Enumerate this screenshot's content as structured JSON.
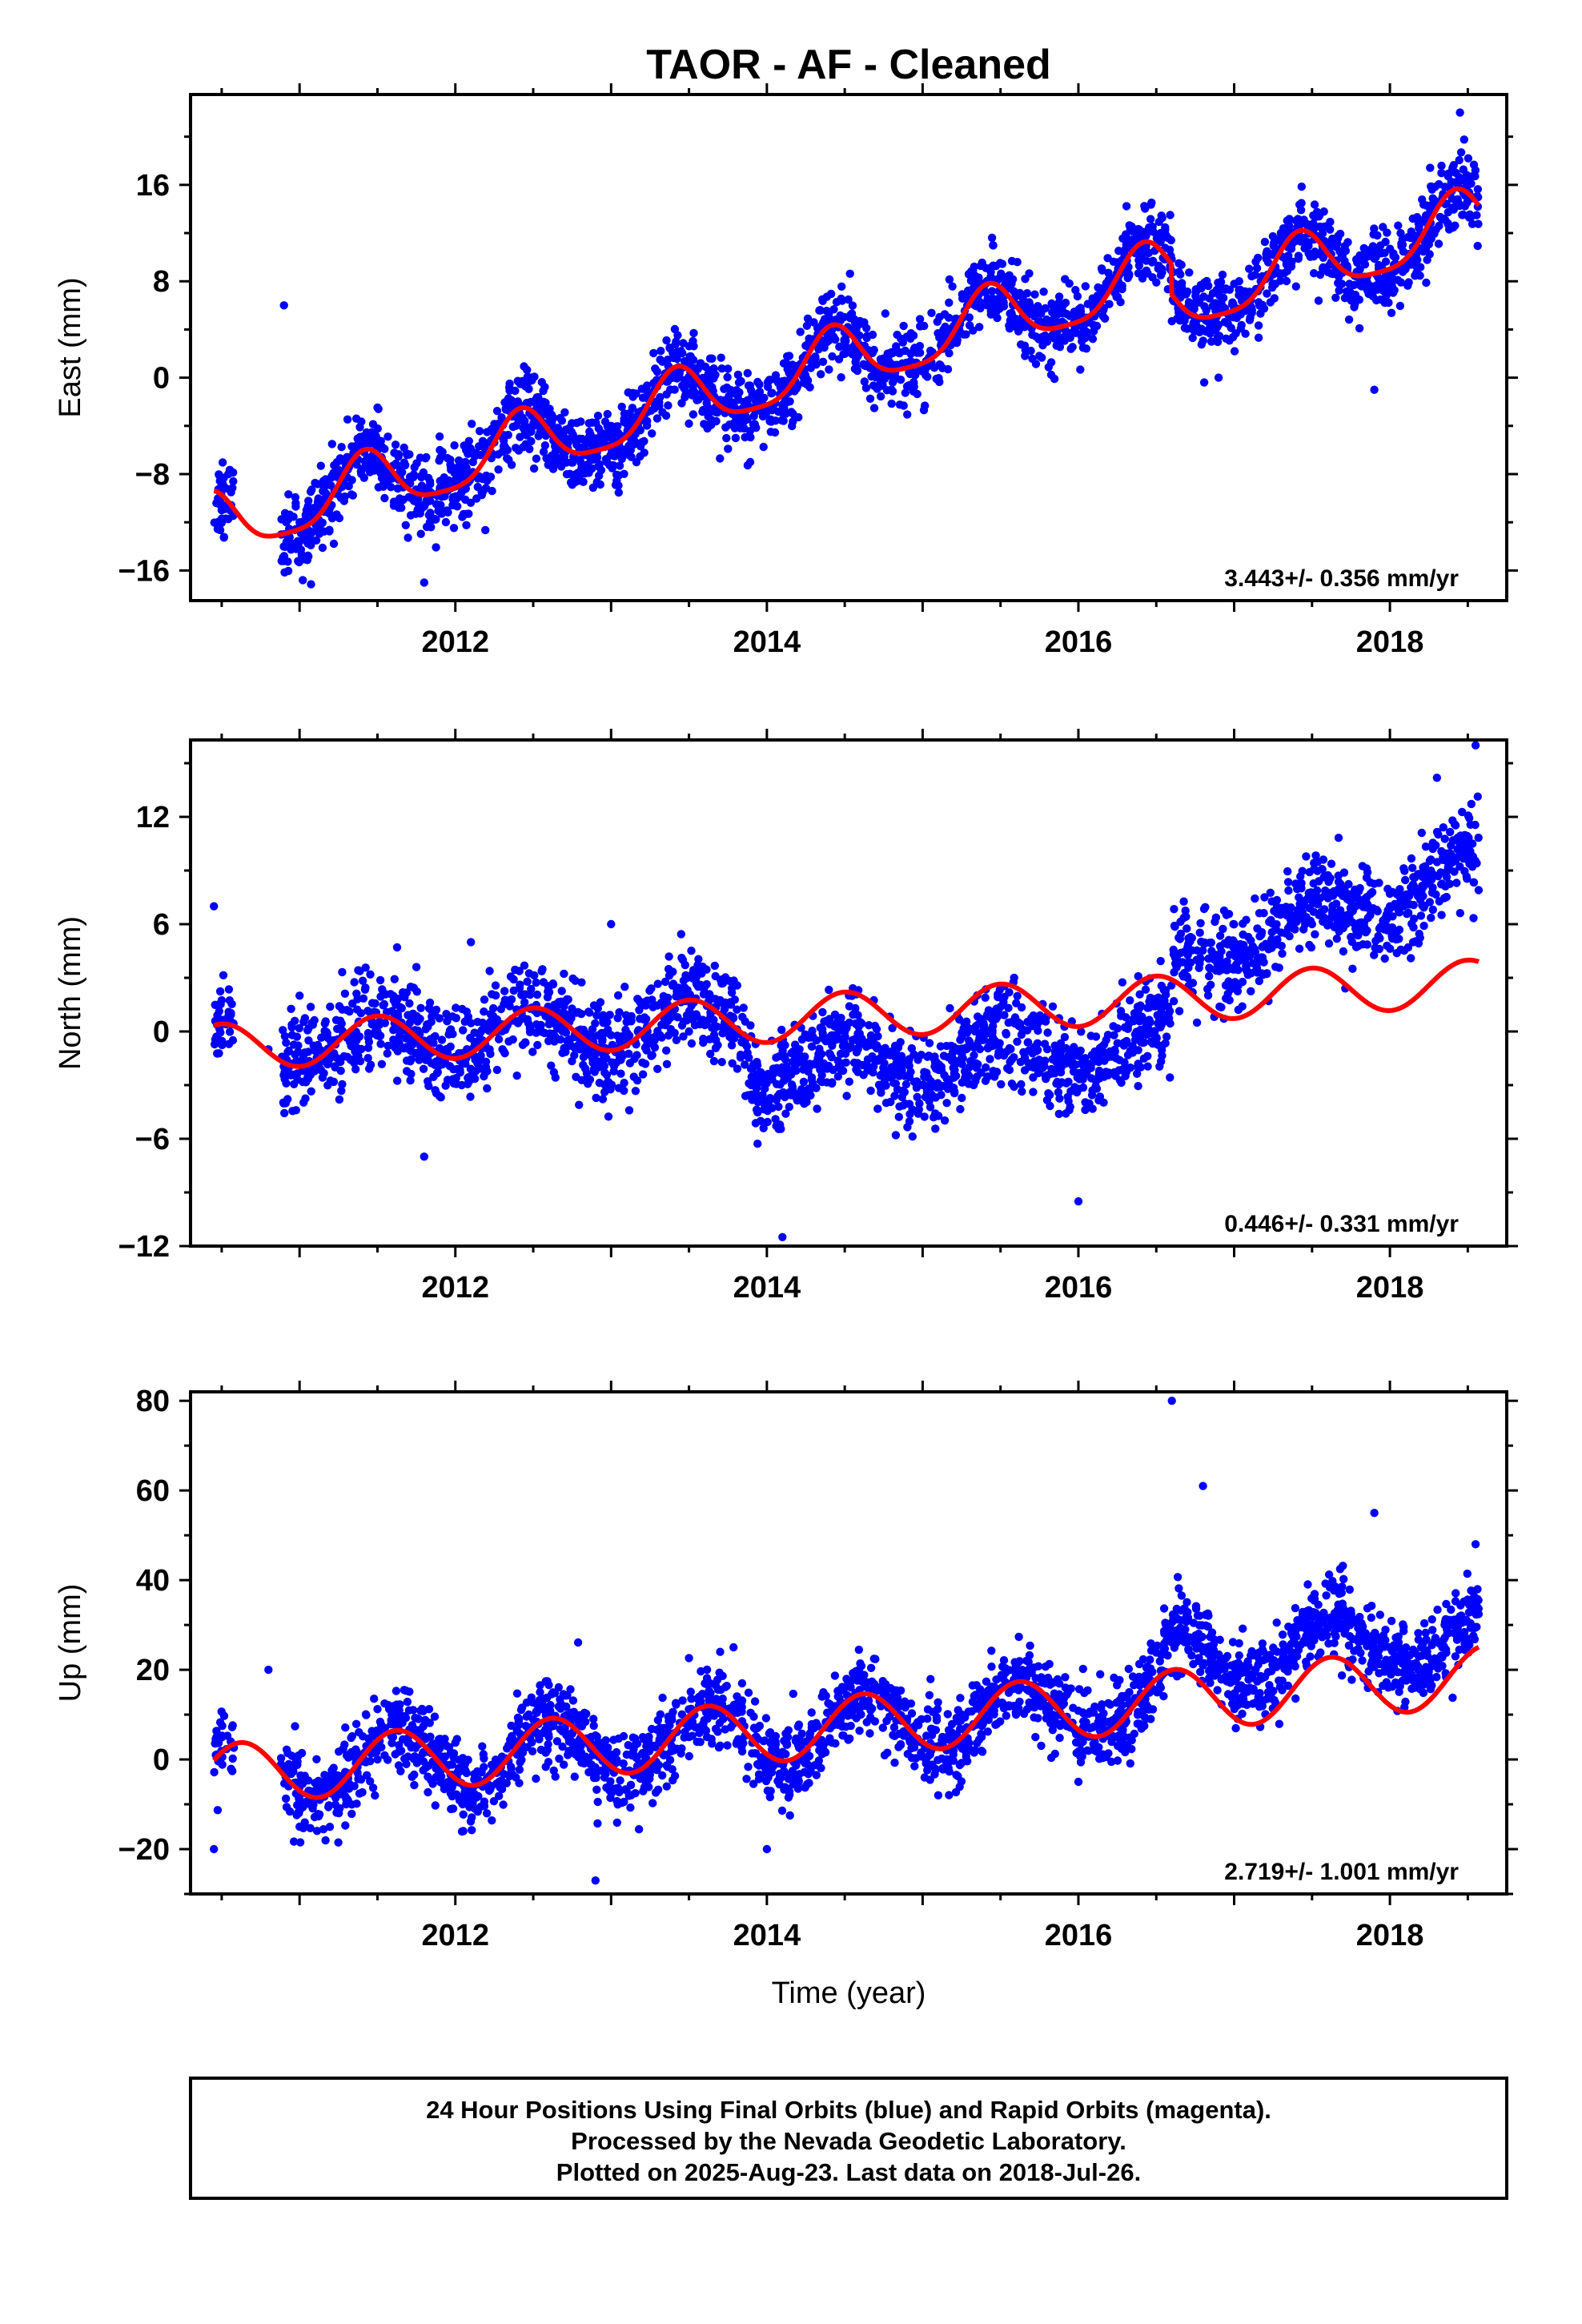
{
  "title": "TAOR  - AF - Cleaned",
  "footer": {
    "lines": [
      "24 Hour Positions Using Final Orbits (blue) and Rapid Orbits (magenta).",
      "Processed by the Nevada Geodetic Laboratory.",
      "Plotted on 2025-Aug-23. Last data on 2018-Jul-26."
    ]
  },
  "colors": {
    "points": "#0000ff",
    "model": "#ff0000",
    "axis": "#000000",
    "background": "#ffffff"
  },
  "chart_data": [
    {
      "type": "scatter",
      "ylabel": "East (mm)",
      "xlabel": "",
      "xlim": [
        2010.3,
        2018.75
      ],
      "ylim": [
        -18.5,
        23.5
      ],
      "xticks": [
        2012,
        2014,
        2016,
        2018
      ],
      "yticks": [
        -16,
        -8,
        0,
        8,
        16
      ],
      "xtick_labels": [
        "2012",
        "2014",
        "2016",
        "2018"
      ],
      "ytick_labels": [
        "−16",
        "−8",
        "0",
        "8",
        "16"
      ],
      "annotation": "3.443+/- 0.356 mm/yr",
      "data_range": [
        2010.45,
        2018.57
      ],
      "series": [
        {
          "kind": "model_curve",
          "trend": {
            "t0": 2010.45,
            "y0": -12.5,
            "slope": 3.443
          },
          "annual_amplitude": 2.6,
          "annual_peak_phase": 0.42,
          "semiannual_amplitude": 0.6,
          "steps": [
            {
              "x": 2016.6,
              "dy": -2.5
            }
          ]
        },
        {
          "kind": "points",
          "approx_count": 2700,
          "noise_std": 1.6,
          "sampled_points": [
            [
              2010.5,
              -11
            ],
            [
              2010.9,
              6
            ],
            [
              2011.0,
              -12
            ],
            [
              2011.5,
              -6
            ],
            [
              2011.8,
              -17
            ],
            [
              2012.0,
              -10
            ],
            [
              2012.5,
              -3
            ],
            [
              2013.0,
              -4
            ],
            [
              2013.5,
              1
            ],
            [
              2013.8,
              -5
            ],
            [
              2014.3,
              3
            ],
            [
              2014.8,
              -1
            ],
            [
              2015.3,
              5
            ],
            [
              2015.8,
              3
            ],
            [
              2016.4,
              12
            ],
            [
              2016.9,
              0
            ],
            [
              2017.3,
              12
            ],
            [
              2017.9,
              -1
            ],
            [
              2018.1,
              9
            ],
            [
              2018.45,
              22
            ]
          ]
        }
      ]
    },
    {
      "type": "scatter",
      "ylabel": "North (mm)",
      "xlabel": "",
      "xlim": [
        2010.3,
        2018.75
      ],
      "ylim": [
        -12,
        16.3
      ],
      "xticks": [
        2012,
        2014,
        2016,
        2018
      ],
      "yticks": [
        -12,
        -6,
        0,
        6,
        12
      ],
      "xtick_labels": [
        "2012",
        "2014",
        "2016",
        "2018"
      ],
      "ytick_labels": [
        "−12",
        "−6",
        "0",
        "6",
        "12"
      ],
      "annotation": "0.446+/- 0.331 mm/yr",
      "data_range": [
        2010.45,
        2018.57
      ],
      "series": [
        {
          "kind": "model_curve",
          "trend": {
            "t0": 2010.45,
            "y0": -0.9,
            "slope": 0.446
          },
          "annual_amplitude": 1.3,
          "annual_peak_phase": 0.5,
          "semiannual_amplitude": 0.0,
          "steps": []
        },
        {
          "kind": "points",
          "approx_count": 2700,
          "noise_std": 1.3,
          "sampled_points": [
            [
              2010.45,
              7
            ],
            [
              2010.8,
              -1
            ],
            [
              2011.0,
              2
            ],
            [
              2011.5,
              0
            ],
            [
              2011.8,
              -7
            ],
            [
              2012.1,
              5
            ],
            [
              2012.8,
              -1
            ],
            [
              2013.0,
              6
            ],
            [
              2013.5,
              0
            ],
            [
              2014.1,
              -2
            ],
            [
              2014.1,
              -11.5
            ],
            [
              2014.8,
              -2
            ],
            [
              2015.3,
              -2
            ],
            [
              2016.0,
              -9.5
            ],
            [
              2016.4,
              -2
            ],
            [
              2016.7,
              3
            ],
            [
              2017.0,
              5
            ],
            [
              2017.5,
              6
            ],
            [
              2018.0,
              7
            ],
            [
              2018.55,
              16
            ]
          ]
        }
      ]
    },
    {
      "type": "scatter",
      "ylabel": "Up (mm)",
      "xlabel": "Time (year)",
      "xlim": [
        2010.3,
        2018.75
      ],
      "ylim": [
        -30,
        82
      ],
      "xticks": [
        2012,
        2014,
        2016,
        2018
      ],
      "yticks": [
        -20,
        0,
        20,
        40,
        60,
        80
      ],
      "xtick_labels": [
        "2012",
        "2014",
        "2016",
        "2018"
      ],
      "ytick_labels": [
        "−20",
        "0",
        "20",
        "40",
        "60",
        "80"
      ],
      "annotation": "2.719+/- 1.001 mm/yr",
      "data_range": [
        2010.45,
        2018.57
      ],
      "series": [
        {
          "kind": "model_curve",
          "trend": {
            "t0": 2010.45,
            "y0": -3.5,
            "slope": 2.719
          },
          "annual_amplitude": 6.8,
          "annual_peak_phase": 0.62,
          "semiannual_amplitude": 0.0,
          "steps": []
        },
        {
          "kind": "points",
          "approx_count": 2700,
          "noise_std": 4.5,
          "sampled_points": [
            [
              2010.45,
              -20
            ],
            [
              2010.8,
              20
            ],
            [
              2011.0,
              -15
            ],
            [
              2011.6,
              5
            ],
            [
              2012.0,
              -8
            ],
            [
              2012.6,
              5
            ],
            [
              2012.9,
              -27
            ],
            [
              2013.5,
              5
            ],
            [
              2013.7,
              24
            ],
            [
              2014.0,
              -20
            ],
            [
              2014.6,
              10
            ],
            [
              2015.1,
              -8
            ],
            [
              2015.6,
              10
            ],
            [
              2016.0,
              -5
            ],
            [
              2016.6,
              80
            ],
            [
              2016.8,
              61
            ],
            [
              2017.5,
              30
            ],
            [
              2017.9,
              55
            ],
            [
              2018.2,
              25
            ],
            [
              2018.55,
              48
            ]
          ]
        }
      ]
    }
  ]
}
